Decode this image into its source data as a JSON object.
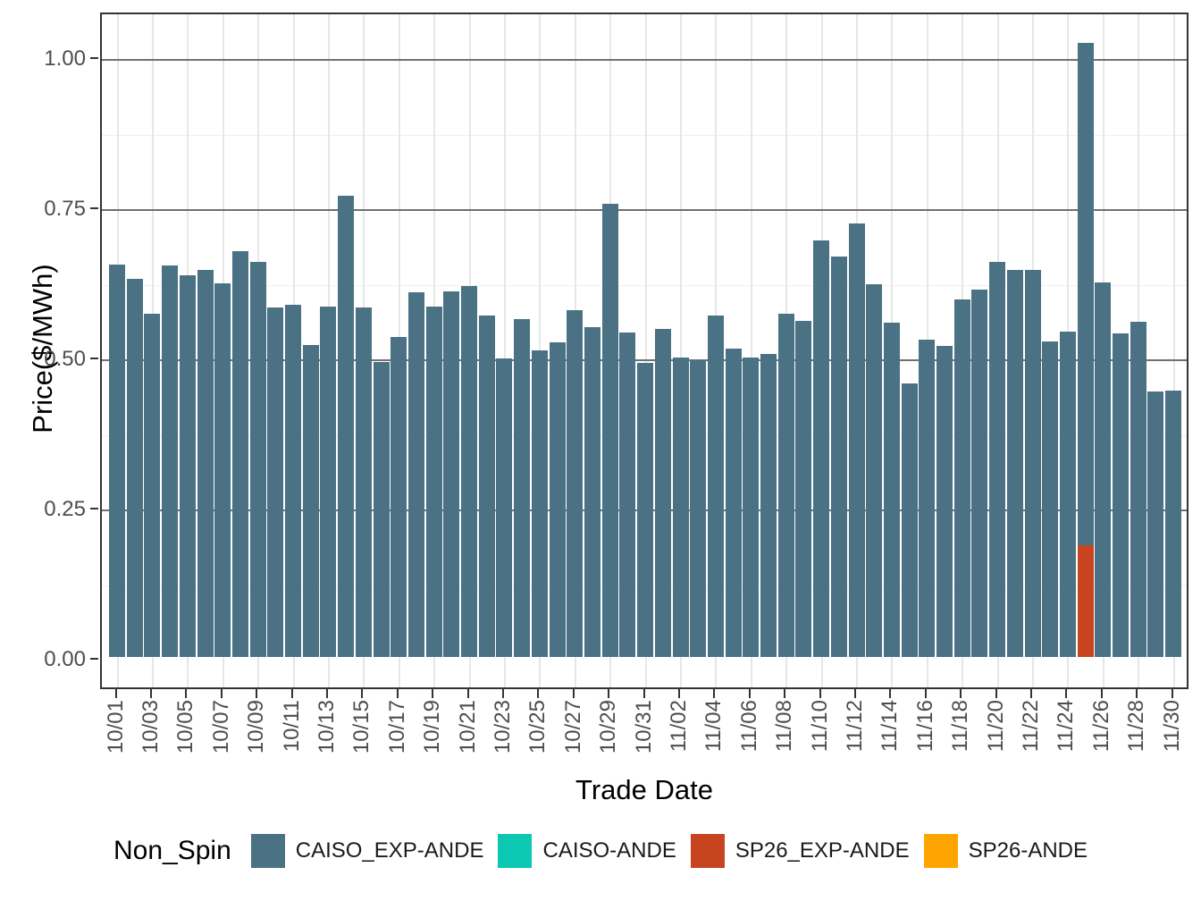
{
  "figure": {
    "y_axis": {
      "title": "Price($/MWh)",
      "tick_labels": [
        "1.00",
        "0.75",
        "0.50",
        "0.25",
        "0.00"
      ],
      "tick_values": [
        1.0,
        0.75,
        0.5,
        0.25,
        0.0
      ]
    },
    "x_axis": {
      "title": "Trade Date",
      "tick_labels": [
        "10/01",
        "10/03",
        "10/05",
        "10/07",
        "10/09",
        "10/11",
        "10/13",
        "10/15",
        "10/17",
        "10/19",
        "10/21",
        "10/23",
        "10/25",
        "10/27",
        "10/29",
        "10/31",
        "11/02",
        "11/04",
        "11/06",
        "11/08",
        "11/10",
        "11/12",
        "11/14",
        "11/16",
        "11/18",
        "11/20",
        "11/22",
        "11/24",
        "11/26",
        "11/28",
        "11/30"
      ]
    },
    "legend": {
      "title": "Non_Spin",
      "items": [
        {
          "label": "CAISO_EXP-ANDE",
          "color": "#4a7284"
        },
        {
          "label": "CAISO-ANDE",
          "color": "#0cc7b2"
        },
        {
          "label": "SP26_EXP-ANDE",
          "color": "#c8441f"
        },
        {
          "label": "SP26-ANDE",
          "color": "#ffa502"
        }
      ]
    },
    "colors": {
      "bar_main": "#4a7284",
      "bar_red": "#c8441f",
      "grid_major_h": "#707070",
      "grid_minor_h": "#efefef",
      "grid_major_v": "#e7e7e7"
    }
  },
  "chart_data": {
    "type": "bar",
    "title": "",
    "xlabel": "Trade Date",
    "ylabel": "Price($/MWh)",
    "ylim": [
      0,
      1.07
    ],
    "grid": true,
    "legend_position": "bottom",
    "legend_title": "Non_Spin",
    "categories": [
      "10/01",
      "10/02",
      "10/03",
      "10/04",
      "10/05",
      "10/06",
      "10/07",
      "10/08",
      "10/09",
      "10/10",
      "10/11",
      "10/12",
      "10/13",
      "10/14",
      "10/15",
      "10/16",
      "10/17",
      "10/18",
      "10/19",
      "10/20",
      "10/21",
      "10/22",
      "10/23",
      "10/24",
      "10/25",
      "10/26",
      "10/27",
      "10/28",
      "10/29",
      "10/30",
      "10/31",
      "11/01",
      "11/02",
      "11/03",
      "11/04",
      "11/05",
      "11/06",
      "11/07",
      "11/08",
      "11/09",
      "11/10",
      "11/11",
      "11/12",
      "11/13",
      "11/14",
      "11/15",
      "11/16",
      "11/17",
      "11/18",
      "11/19",
      "11/20",
      "11/21",
      "11/22",
      "11/23",
      "11/24",
      "11/25",
      "11/26",
      "11/27",
      "11/28",
      "11/29",
      "11/30"
    ],
    "series": [
      {
        "name": "CAISO_EXP-ANDE",
        "color": "#4a7284",
        "values": [
          0.653,
          0.63,
          0.572,
          0.652,
          0.636,
          0.645,
          0.622,
          0.676,
          0.657,
          0.582,
          0.586,
          0.52,
          0.583,
          0.768,
          0.582,
          0.491,
          0.532,
          0.607,
          0.583,
          0.609,
          0.617,
          0.568,
          0.497,
          0.562,
          0.51,
          0.524,
          0.577,
          0.549,
          0.755,
          0.54,
          0.489,
          0.546,
          0.499,
          0.494,
          0.569,
          0.514,
          0.499,
          0.505,
          0.571,
          0.56,
          0.694,
          0.667,
          0.721,
          0.621,
          0.556,
          0.455,
          0.528,
          0.518,
          0.595,
          0.611,
          0.658,
          0.644,
          0.644,
          0.525,
          0.542,
          1.022,
          0.624,
          0.538,
          0.558,
          0.442,
          0.444
        ]
      },
      {
        "name": "SP26_EXP-ANDE",
        "color": "#c8441f",
        "values": [
          0,
          0,
          0,
          0,
          0,
          0,
          0,
          0,
          0,
          0,
          0,
          0,
          0,
          0,
          0,
          0,
          0,
          0,
          0,
          0,
          0,
          0,
          0,
          0,
          0,
          0,
          0,
          0,
          0,
          0,
          0,
          0,
          0,
          0,
          0,
          0,
          0,
          0,
          0,
          0,
          0,
          0,
          0,
          0,
          0,
          0,
          0,
          0,
          0,
          0,
          0,
          0,
          0,
          0,
          0,
          0.186,
          0,
          0,
          0,
          0,
          0
        ]
      }
    ]
  }
}
